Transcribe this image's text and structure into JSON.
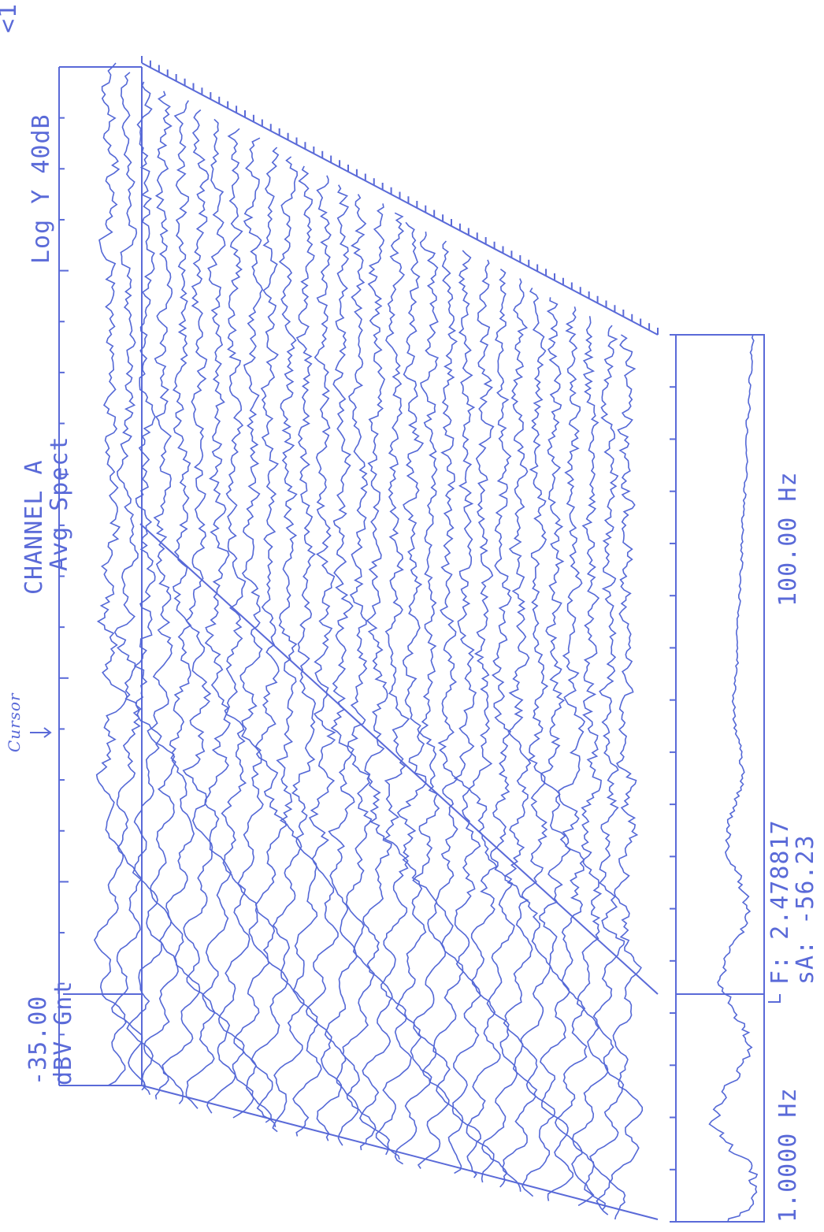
{
  "header": {
    "ref_level": "-35.00",
    "unit": "dBV Gnt",
    "channel": "CHANNEL A",
    "measurement": "Avg Spect",
    "scale": "Log Y 40dB",
    "marker": "<1"
  },
  "annotations": {
    "cursor_handwritten": "Cursor"
  },
  "cursor_readout": {
    "freq_label": "F: 2.478817",
    "amp_label": "sA: -56.23"
  },
  "axis": {
    "start": "1.0000 Hz",
    "stop": "100.00 Hz"
  },
  "colors": {
    "ink": "#5a6ad8",
    "paper": "#ffffff"
  },
  "chart_data": {
    "type": "line",
    "chart_style": "waterfall (3D stacked averaged spectra), plotted rotated 90 degrees",
    "x_scale": "log",
    "xlim_hz": [
      1.0,
      100.0
    ],
    "y_scale": "log (dB)",
    "y_range_db": 40,
    "y_top_dbv": -35.0,
    "trace_count": 30,
    "cursor": {
      "frequency_hz": 2.478817,
      "amplitude": -56.23
    },
    "grid": false,
    "legend": "none"
  }
}
